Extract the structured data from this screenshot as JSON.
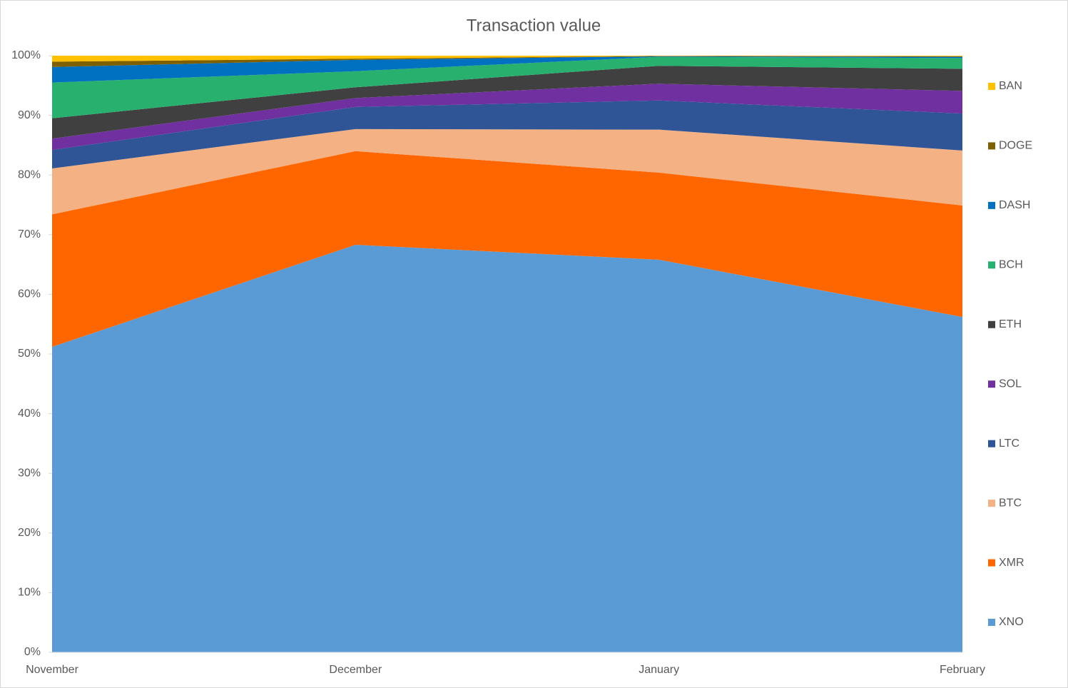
{
  "chart_data": {
    "type": "stacked-area-100",
    "title": "Transaction value",
    "categories": [
      "November",
      "December",
      "January",
      "February"
    ],
    "ylim": [
      0,
      100
    ],
    "yticks": [
      {
        "value": 0,
        "label": "0%"
      },
      {
        "value": 10,
        "label": "10%"
      },
      {
        "value": 20,
        "label": "20%"
      },
      {
        "value": 30,
        "label": "30%"
      },
      {
        "value": 40,
        "label": "40%"
      },
      {
        "value": 50,
        "label": "50%"
      },
      {
        "value": 60,
        "label": "60%"
      },
      {
        "value": 70,
        "label": "70%"
      },
      {
        "value": 80,
        "label": "80%"
      },
      {
        "value": 90,
        "label": "90%"
      },
      {
        "value": 100,
        "label": "100%"
      }
    ],
    "legend": "right",
    "series": [
      {
        "name": "XNO",
        "color": "#5b9bd5",
        "values": [
          51.2,
          68.3,
          65.8,
          56.2
        ]
      },
      {
        "name": "XMR",
        "color": "#ff6600",
        "values": [
          22.2,
          15.7,
          14.6,
          18.7
        ]
      },
      {
        "name": "BTC",
        "color": "#f4b183",
        "values": [
          7.7,
          3.7,
          7.2,
          9.2
        ]
      },
      {
        "name": "LTC",
        "color": "#2f5597",
        "values": [
          3.1,
          3.7,
          4.9,
          6.2
        ]
      },
      {
        "name": "SOL",
        "color": "#7030a0",
        "values": [
          1.9,
          1.5,
          2.8,
          3.8
        ]
      },
      {
        "name": "ETH",
        "color": "#404040",
        "values": [
          3.4,
          1.8,
          3.0,
          3.7
        ]
      },
      {
        "name": "BCH",
        "color": "#27b06e",
        "values": [
          6.0,
          2.7,
          1.5,
          1.8
        ]
      },
      {
        "name": "DASH",
        "color": "#0070c0",
        "values": [
          2.6,
          1.9,
          0.1,
          0.2
        ]
      },
      {
        "name": "DOGE",
        "color": "#7f6000",
        "values": [
          0.9,
          0.2,
          0.05,
          0.1
        ]
      },
      {
        "name": "BAN",
        "color": "#ffc000",
        "values": [
          1.0,
          0.5,
          0.05,
          0.1
        ]
      }
    ]
  }
}
